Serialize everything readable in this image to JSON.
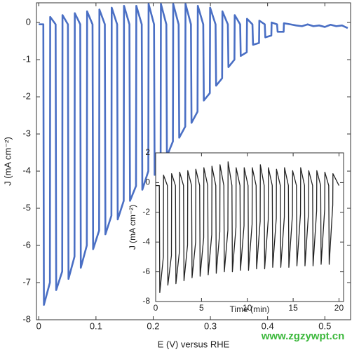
{
  "chart_data": [
    {
      "type": "line",
      "xlabel": "E (V) versus RHE",
      "ylabel": "J (mA cm⁻²)",
      "xlim": [
        -0.004,
        0.545
      ],
      "ylim": [
        -8,
        0.53
      ],
      "xticks": [
        0,
        0.1,
        0.2,
        0.3,
        0.4,
        0.5
      ],
      "yticks": [
        0,
        -1,
        -2,
        -3,
        -4,
        -5,
        -6,
        -7,
        -8
      ],
      "x": [
        0.0,
        0.008,
        0.009,
        0.0195,
        0.02,
        0.0295,
        0.0305,
        0.041,
        0.0415,
        0.051,
        0.052,
        0.0625,
        0.063,
        0.0725,
        0.0735,
        0.084,
        0.0845,
        0.094,
        0.095,
        0.1055,
        0.106,
        0.1155,
        0.1165,
        0.127,
        0.1275,
        0.137,
        0.138,
        0.1485,
        0.149,
        0.1585,
        0.1595,
        0.17,
        0.1705,
        0.18,
        0.181,
        0.1915,
        0.192,
        0.2015,
        0.2025,
        0.213,
        0.2135,
        0.223,
        0.224,
        0.2345,
        0.235,
        0.2445,
        0.2455,
        0.256,
        0.2565,
        0.266,
        0.267,
        0.2775,
        0.278,
        0.2875,
        0.2885,
        0.299,
        0.2995,
        0.309,
        0.31,
        0.3205,
        0.321,
        0.3305,
        0.3315,
        0.342,
        0.3425,
        0.352,
        0.353,
        0.3635,
        0.364,
        0.3735,
        0.3745,
        0.385,
        0.3855,
        0.395,
        0.396,
        0.4065,
        0.407,
        0.4165,
        0.4175,
        0.428,
        0.4285,
        0.44,
        0.45,
        0.46,
        0.47,
        0.48,
        0.49,
        0.5,
        0.51,
        0.52,
        0.53,
        0.54
      ],
      "series": [
        {
          "color": "#4a6fc4",
          "values": [
            -0.05,
            -0.05,
            -7.6,
            -7.0,
            0.15,
            -0.05,
            -7.2,
            -6.7,
            0.2,
            -0.05,
            -6.9,
            -6.3,
            0.25,
            -0.05,
            -6.6,
            -6.0,
            0.3,
            -0.05,
            -6.1,
            -5.6,
            0.35,
            -0.05,
            -5.7,
            -5.2,
            0.4,
            -0.05,
            -5.3,
            -4.8,
            0.45,
            -0.05,
            -4.8,
            -4.4,
            0.45,
            -0.05,
            -4.5,
            -4.0,
            0.5,
            -0.05,
            -4.1,
            -3.7,
            0.5,
            -0.05,
            -3.6,
            -3.2,
            0.5,
            -0.05,
            -3.1,
            -2.8,
            0.5,
            -0.05,
            -2.7,
            -2.4,
            0.45,
            -0.05,
            -2.1,
            -1.9,
            0.4,
            -0.05,
            -1.7,
            -1.5,
            0.3,
            -0.05,
            -1.2,
            -1.0,
            0.2,
            -0.05,
            -0.9,
            -0.8,
            0.1,
            -0.05,
            -0.6,
            -0.55,
            0.05,
            -0.05,
            -0.4,
            -0.35,
            0.0,
            -0.05,
            -0.25,
            -0.25,
            -0.02,
            -0.05,
            -0.08,
            -0.1,
            -0.05,
            -0.1,
            -0.08,
            -0.12,
            -0.06,
            -0.1,
            -0.08,
            -0.15
          ]
        }
      ]
    },
    {
      "type": "line",
      "xlabel": "Time (min)",
      "ylabel": "J (mA cm⁻²)",
      "xlim": [
        0,
        20.5
      ],
      "ylim": [
        -8,
        2
      ],
      "xticks": [
        0,
        5,
        10,
        15,
        20
      ],
      "yticks": [
        2,
        0,
        -2,
        -4,
        -6,
        -8
      ],
      "x": [
        0,
        0.4,
        0.45,
        0.84,
        0.86,
        1.28,
        1.33,
        1.72,
        1.74,
        2.16,
        2.21,
        2.6,
        2.62,
        3.04,
        3.09,
        3.48,
        3.5,
        3.92,
        3.97,
        4.36,
        4.38,
        4.8,
        4.85,
        5.24,
        5.26,
        5.68,
        5.73,
        6.12,
        6.14,
        6.56,
        6.61,
        7.0,
        7.02,
        7.44,
        7.49,
        7.88,
        7.9,
        8.32,
        8.37,
        8.76,
        8.78,
        9.2,
        9.25,
        9.64,
        9.66,
        10.08,
        10.13,
        10.52,
        10.54,
        10.96,
        11.01,
        11.4,
        11.42,
        11.84,
        11.89,
        12.28,
        12.3,
        12.72,
        12.77,
        13.16,
        13.18,
        13.6,
        13.65,
        14.04,
        14.06,
        14.48,
        14.53,
        14.92,
        14.94,
        15.36,
        15.41,
        15.8,
        15.82,
        16.24,
        16.29,
        16.68,
        16.7,
        17.12,
        17.17,
        17.56,
        17.58,
        18.0,
        18.05,
        18.44,
        18.46,
        18.88,
        18.93,
        19.32,
        19.34,
        20
      ],
      "series": [
        {
          "color": "#222222",
          "values": [
            -0.2,
            -0.2,
            -7.4,
            -5.0,
            0.5,
            -0.2,
            -6.9,
            -4.9,
            0.6,
            -0.2,
            -6.8,
            -4.6,
            0.7,
            -0.2,
            -6.6,
            -4.2,
            0.8,
            -0.2,
            -6.4,
            -4.0,
            0.9,
            -0.2,
            -6.3,
            -3.7,
            1.0,
            -0.2,
            -6.2,
            -3.5,
            1.1,
            -0.2,
            -6.1,
            -3.3,
            1.2,
            -0.2,
            -6.0,
            -3.2,
            1.4,
            -0.2,
            -6.0,
            -3.0,
            1.0,
            -0.2,
            -5.9,
            -2.9,
            1.0,
            -0.2,
            -5.9,
            -2.8,
            1.0,
            -0.2,
            -5.8,
            -2.6,
            1.2,
            -0.2,
            -5.8,
            -2.5,
            1.0,
            -0.2,
            -5.7,
            -2.4,
            0.9,
            -0.2,
            -5.7,
            -2.3,
            1.0,
            -0.2,
            -5.7,
            -2.2,
            0.8,
            -0.2,
            -5.6,
            -2.1,
            1.0,
            -0.2,
            -5.6,
            -2.0,
            0.8,
            -0.2,
            -5.6,
            -1.9,
            0.8,
            -0.2,
            -5.5,
            -1.8,
            0.7,
            -0.2,
            -5.5,
            -1.5,
            0.6,
            -0.2
          ]
        }
      ]
    }
  ],
  "watermark": "www.zgzywpt.cn"
}
